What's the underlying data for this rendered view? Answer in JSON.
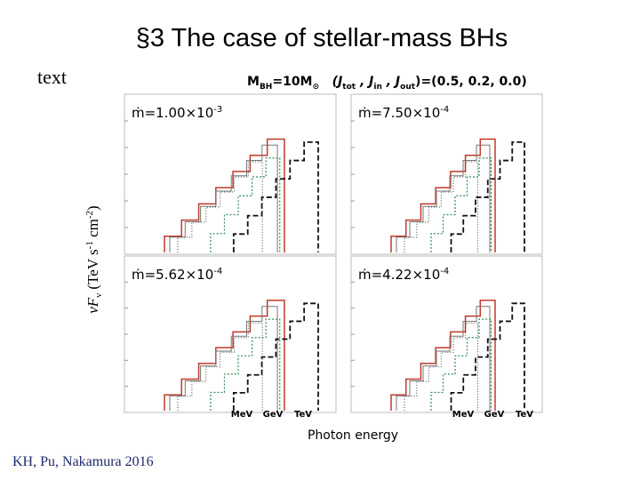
{
  "slide": {
    "title": "§3  The case of stellar-mass BHs",
    "body_text": "text",
    "figure": {
      "heading": [
        "M",
        "BH",
        "=10M",
        "⊙",
        "   (J",
        "tot",
        " , J",
        "in",
        " , J",
        "out",
        ")=(0.5, 0.2, 0.0)"
      ],
      "y_label": [
        "νF",
        "ν",
        " (TeV s",
        "-1",
        " cm",
        "-2",
        ")"
      ],
      "x_label": "Photon energy",
      "panels": [
        {
          "label": "ṁ=1.00×10",
          "exp": "-3"
        },
        {
          "label": "ṁ=7.50×10",
          "exp": "-4"
        },
        {
          "label": "ṁ=5.62×10",
          "exp": "-4"
        },
        {
          "label": "ṁ=4.22×10",
          "exp": "-4"
        }
      ],
      "x_ticks": [
        "MeV",
        "GeV",
        "TeV"
      ]
    },
    "citation": "KH, Pu, Nakamura 2016"
  }
}
